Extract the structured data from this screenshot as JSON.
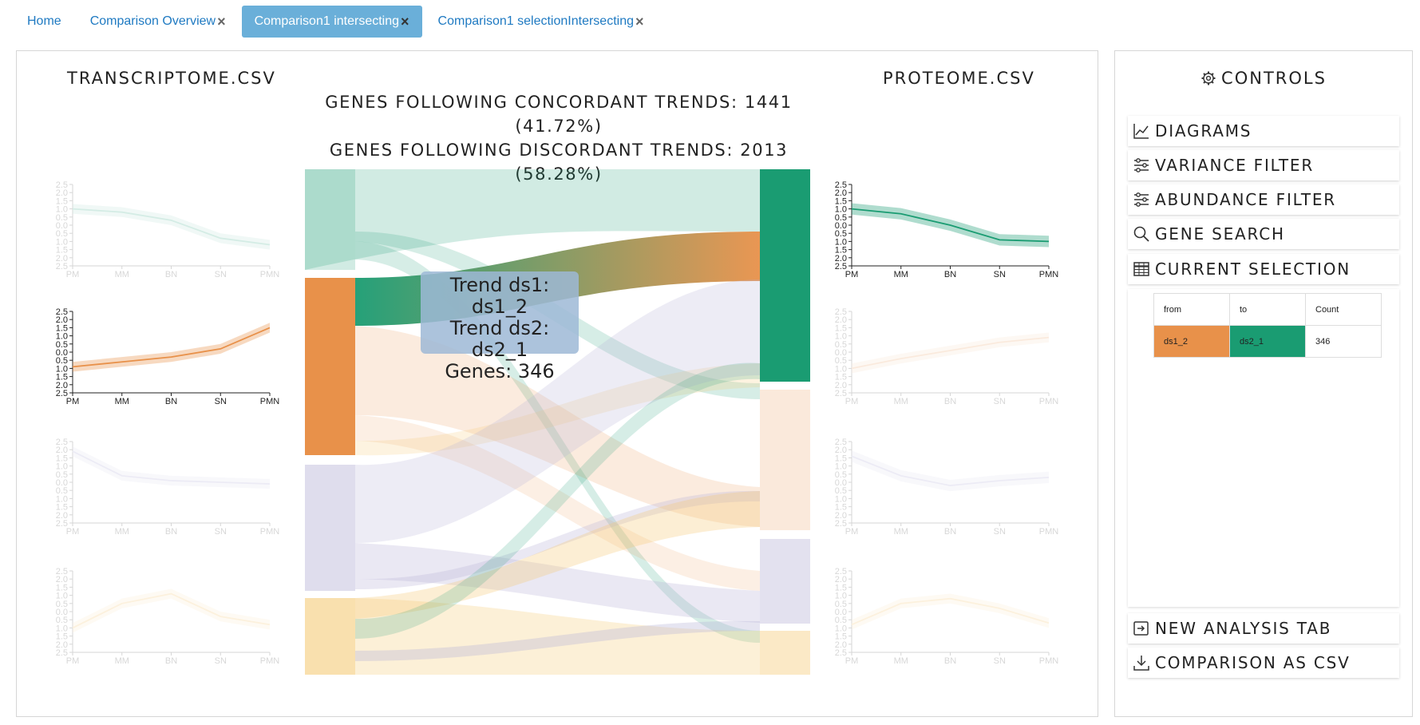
{
  "tabs": [
    {
      "label": "Home",
      "closable": false,
      "active": false
    },
    {
      "label": "Comparison Overview",
      "closable": true,
      "active": false
    },
    {
      "label": "Comparison1 intersecting",
      "closable": true,
      "active": true
    },
    {
      "label": "Comparison1 selectionIntersecting",
      "closable": true,
      "active": false
    }
  ],
  "close_glyph": "×",
  "left_dataset": "TRANSCRIPTOME.CSV",
  "right_dataset": "PROTEOME.CSV",
  "stats": {
    "concordant": "GENES FOLLOWING CONCORDANT TRENDS: 1441 (41.72%)",
    "discordant": "GENES FOLLOWING DISCORDANT TRENDS: 2013 (58.28%)"
  },
  "tooltip": {
    "line1": "Trend ds1: ds1_2",
    "line2": "Trend ds2: ds2_1",
    "line3": "Genes: 346"
  },
  "colors": {
    "green": "#1a9c72",
    "orange": "#e8914a",
    "lavender": "#b8b4d8",
    "yellow": "#f6c870",
    "tab_active": "#6aafd9",
    "link": "#1f7ac2"
  },
  "mini_charts": {
    "x_labels": [
      "PM",
      "MM",
      "BN",
      "SN",
      "PMN"
    ],
    "y_ticks": [
      "2.5",
      "2.0",
      "1.5",
      "1.0",
      "0.5",
      "0.0",
      "0.5",
      "1.0",
      "1.5",
      "2.0",
      "2.5"
    ],
    "y_range": [
      -2.5,
      2.5
    ],
    "left": [
      {
        "cluster": "ds1_1",
        "color": "#1a9c72",
        "highlighted": false,
        "mean": [
          1.0,
          0.8,
          0.3,
          -0.8,
          -1.2
        ],
        "spread": 0.3
      },
      {
        "cluster": "ds1_2",
        "color": "#e8914a",
        "highlighted": true,
        "mean": [
          -0.9,
          -0.6,
          -0.3,
          0.2,
          1.5
        ],
        "spread": 0.3
      },
      {
        "cluster": "ds1_3",
        "color": "#9c97c9",
        "highlighted": false,
        "mean": [
          1.9,
          0.4,
          0.1,
          0.0,
          -0.1
        ],
        "spread": 0.3
      },
      {
        "cluster": "ds1_4",
        "color": "#f2b34a",
        "highlighted": false,
        "mean": [
          -1.0,
          0.5,
          1.1,
          -0.3,
          -0.8
        ],
        "spread": 0.3
      }
    ],
    "right": [
      {
        "cluster": "ds2_1",
        "color": "#1a9c72",
        "highlighted": true,
        "mean": [
          1.0,
          0.7,
          0.0,
          -0.9,
          -1.0
        ],
        "spread": 0.35
      },
      {
        "cluster": "ds2_2",
        "color": "#e8914a",
        "highlighted": false,
        "mean": [
          -1.0,
          -0.4,
          0.1,
          0.6,
          0.9
        ],
        "spread": 0.3
      },
      {
        "cluster": "ds2_3",
        "color": "#9c97c9",
        "highlighted": false,
        "mean": [
          1.6,
          0.4,
          -0.2,
          0.1,
          0.3
        ],
        "spread": 0.35
      },
      {
        "cluster": "ds2_4",
        "color": "#f2b34a",
        "highlighted": false,
        "mean": [
          -0.8,
          0.5,
          0.8,
          0.2,
          -0.7
        ],
        "spread": 0.3
      }
    ]
  },
  "controls": {
    "title": "CONTROLS",
    "items": [
      {
        "label": "DIAGRAMS",
        "icon": "chart-line-icon"
      },
      {
        "label": "VARIANCE FILTER",
        "icon": "sliders-icon"
      },
      {
        "label": "ABUNDANCE FILTER",
        "icon": "sliders-icon"
      },
      {
        "label": "GENE SEARCH",
        "icon": "search-icon"
      },
      {
        "label": "CURRENT SELECTION",
        "icon": "table-icon"
      }
    ],
    "bottom_items": [
      {
        "label": "NEW ANALYSIS TAB",
        "icon": "open-tab-icon"
      },
      {
        "label": "COMPARISON AS CSV",
        "icon": "download-icon"
      }
    ]
  },
  "selection_table": {
    "headers": [
      "from",
      "to",
      "Count"
    ],
    "rows": [
      [
        "ds1_2",
        "ds2_1",
        "346"
      ]
    ]
  }
}
